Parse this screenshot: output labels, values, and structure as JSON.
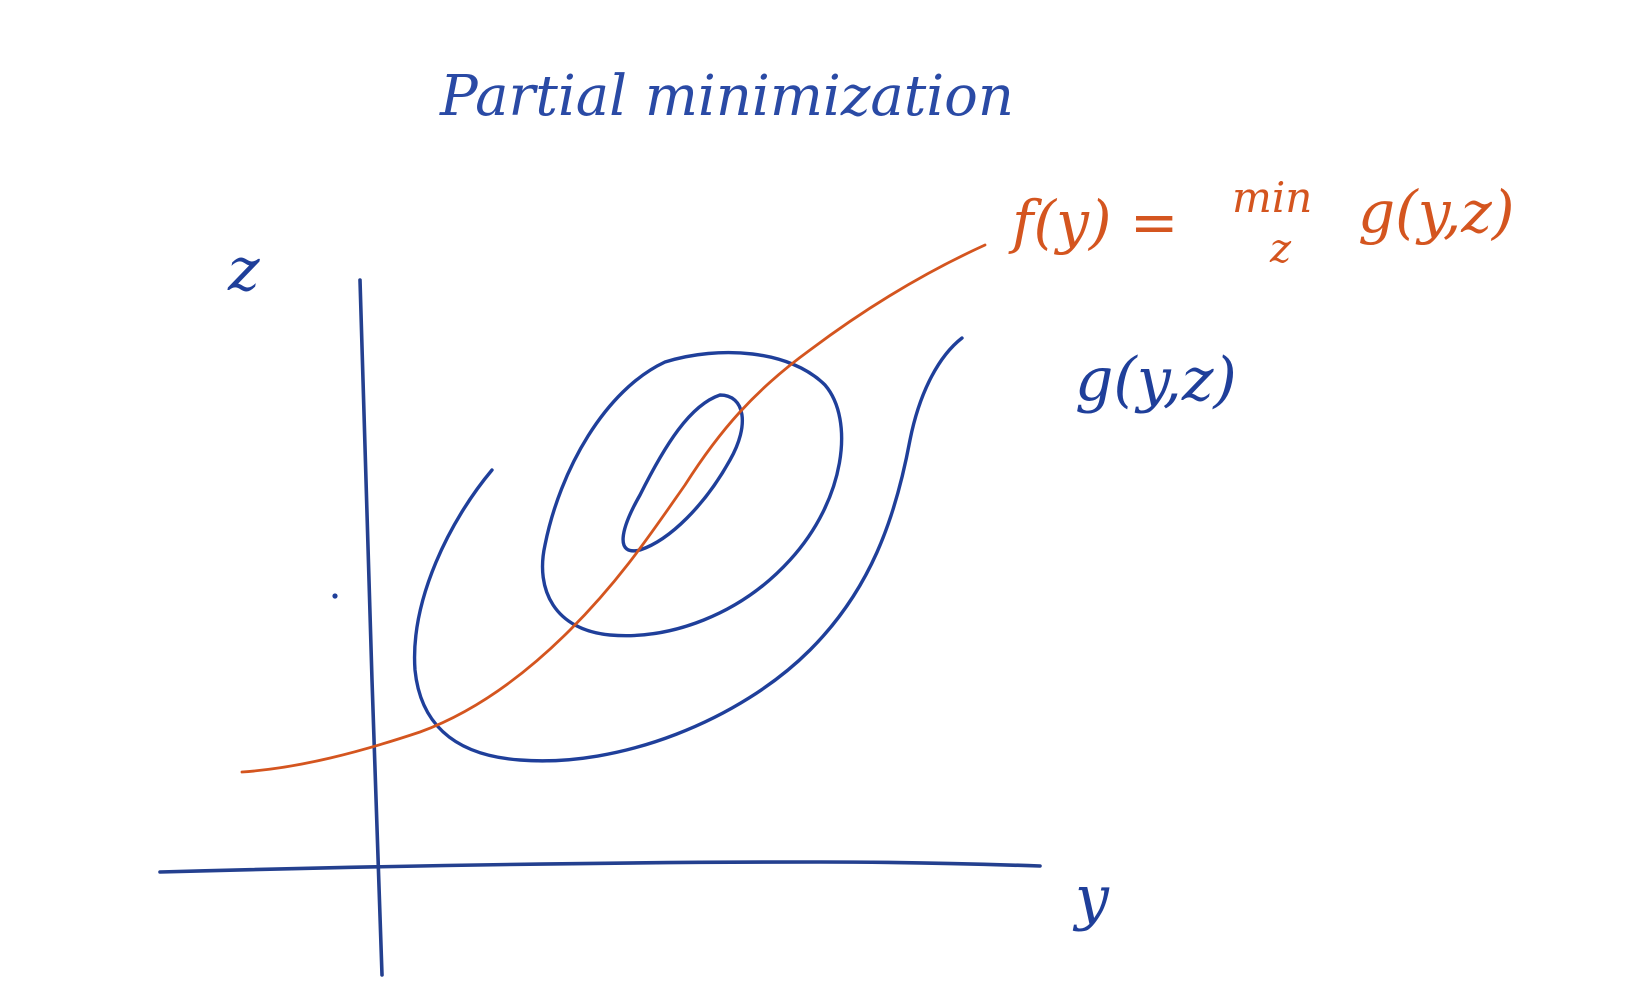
{
  "diagram": {
    "title": "Partial minimization",
    "f_label": "f(y) = min g(y,z)",
    "f_label_main": "f(y) = ",
    "f_label_min": "min",
    "f_label_sub": "z",
    "f_label_tail": "g(y,z)",
    "g_label": "g(y,z)",
    "x_axis_label": "y",
    "y_axis_label": "z",
    "colors": {
      "contours": "#1f3f9a",
      "minimizer_curve": "#d4551f",
      "axes": "#24408f",
      "background": "#ffffff"
    }
  }
}
